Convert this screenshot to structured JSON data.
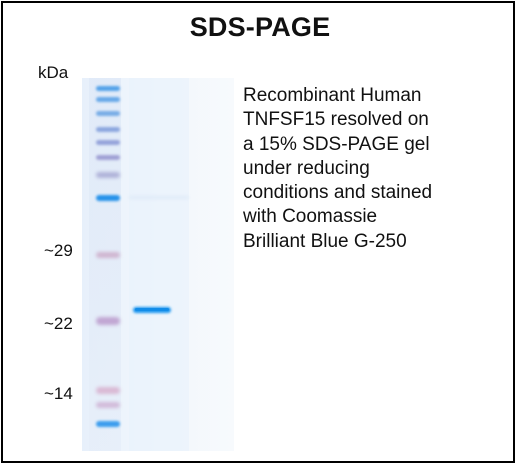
{
  "figure": {
    "title": "SDS-PAGE",
    "unit_label": "kDa",
    "markers": {
      "kda_29": "~29",
      "kda_22": "~22",
      "kda_14": "~14"
    },
    "description": "Recombinant Human\nTNFSF15 resolved on\na 15% SDS-PAGE gel\nunder reducing\nconditions and stained\nwith Coomassie\nBrilliant Blue G-250"
  },
  "colors": {
    "gel_background": "#eef4fb",
    "ladder_blue": "#2a8fe8",
    "ladder_violet": "#8b86c8",
    "ladder_pink": "#c89bbd",
    "sample_band": "#1a96ef"
  },
  "icons": {
    "gel": "gel-image",
    "ladder": "protein-ladder",
    "sample_band": "sample-band"
  }
}
